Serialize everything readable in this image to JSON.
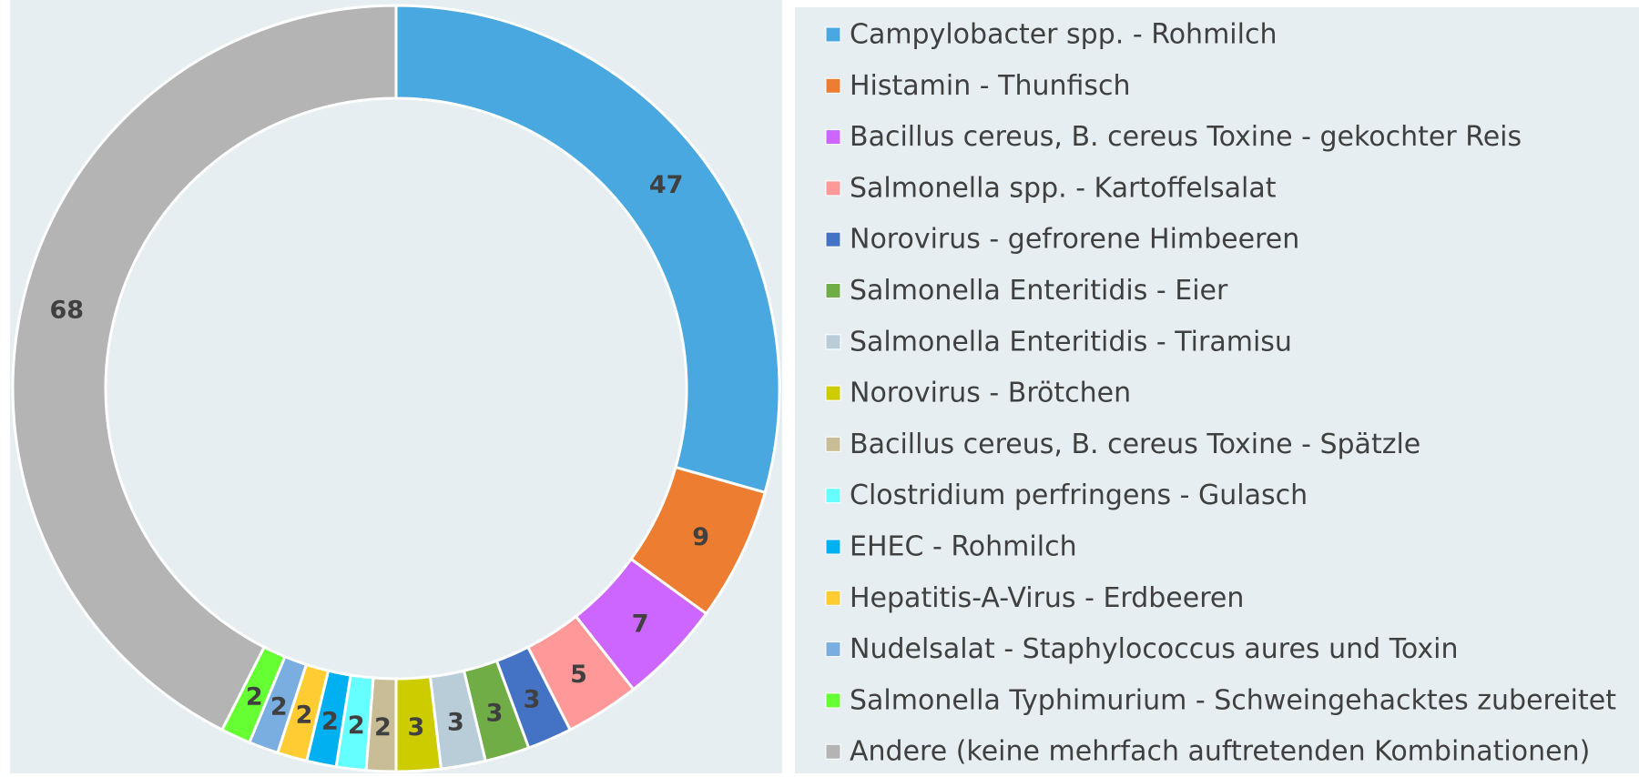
{
  "chart_data": {
    "type": "pie",
    "categories": [
      "Campylobacter spp. - Rohmilch",
      "Histamin - Thunfisch",
      "Bacillus cereus, B. cereus Toxine - gekochter Reis",
      "Salmonella spp.  - Kartoffelsalat",
      "Norovirus - gefrorene Himbeeren",
      "Salmonella Enteritidis - Eier",
      "Salmonella Enteritidis - Tiramisu",
      "Norovirus - Brötchen",
      "Bacillus cereus, B. cereus Toxine - Spätzle",
      "Clostridium perfringens - Gulasch",
      "EHEC - Rohmilch",
      "Hepatitis-A-Virus  - Erdbeeren",
      "Nudelsalat - Staphylococcus aures und Toxin",
      "Salmonella Typhimurium - Schweingehacktes zubereitet",
      "Andere (keine mehrfach auftretenden Kombinationen)"
    ],
    "values": [
      47,
      9,
      7,
      5,
      3,
      3,
      3,
      3,
      2,
      2,
      2,
      2,
      2,
      2,
      68
    ],
    "colors": [
      "#4aa8e0",
      "#ed7d31",
      "#cc66ff",
      "#ff9999",
      "#4472c4",
      "#70ad47",
      "#b8cdd8",
      "#cccc00",
      "#c8bd96",
      "#66ffff",
      "#00b0f0",
      "#ffcc33",
      "#7aaee0",
      "#66ff33",
      "#b4b4b4"
    ],
    "legend": "right"
  }
}
